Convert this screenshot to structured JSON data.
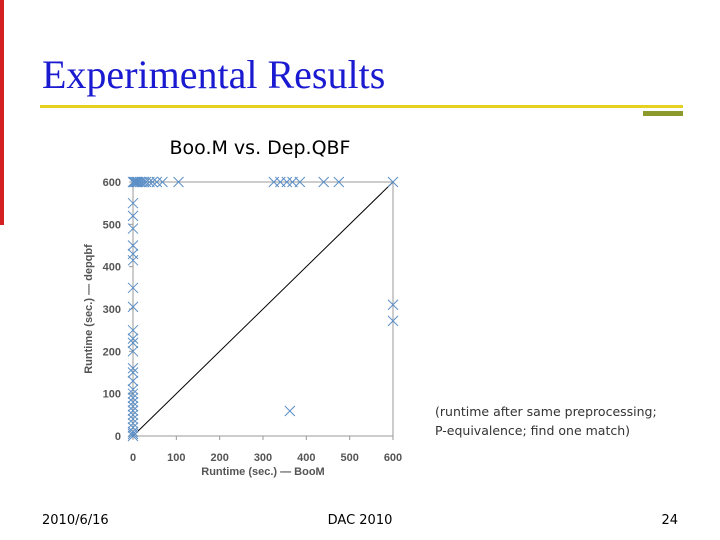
{
  "slide": {
    "title": "Experimental Results",
    "footer": {
      "date": "2010/6/16",
      "event": "DAC 2010",
      "page": "24"
    }
  },
  "chart_data": {
    "type": "scatter",
    "title": "Boo.M vs. Dep.QBF",
    "x_label": "Runtime (sec.) — BooM",
    "y_label": "Runtime (sec.) — depqbf",
    "annotation": [
      "(runtime after same preprocessing;",
      "P-equivalence; find one match)"
    ],
    "xlim": [
      0,
      600
    ],
    "ylim": [
      0,
      600
    ],
    "xticks": [
      0,
      100,
      200,
      300,
      400,
      500,
      600
    ],
    "yticks": [
      0,
      100,
      200,
      300,
      400,
      500,
      600
    ],
    "grid": false,
    "diagonal": true,
    "marker": "x",
    "series": [
      {
        "color": "#5b8fc7",
        "x": [
          0,
          3,
          6,
          9,
          12,
          16,
          20,
          25,
          30,
          38,
          45,
          55,
          68,
          105,
          325,
          340,
          355,
          368,
          385,
          440,
          475,
          600,
          0,
          0,
          0,
          0,
          0,
          0,
          0,
          0,
          0,
          0,
          0,
          0,
          0,
          0,
          0,
          0,
          0,
          0,
          0,
          0,
          0,
          0,
          0,
          0,
          0,
          0,
          0,
          0,
          362,
          600,
          600
        ],
        "values": [
          600,
          600,
          600,
          600,
          600,
          600,
          600,
          600,
          600,
          600,
          600,
          600,
          600,
          600,
          600,
          600,
          600,
          600,
          600,
          600,
          600,
          600,
          550,
          520,
          490,
          450,
          430,
          415,
          350,
          305,
          250,
          230,
          220,
          200,
          160,
          150,
          130,
          110,
          100,
          90,
          80,
          70,
          60,
          50,
          40,
          30,
          20,
          10,
          5,
          0,
          59,
          310,
          272
        ]
      }
    ]
  }
}
